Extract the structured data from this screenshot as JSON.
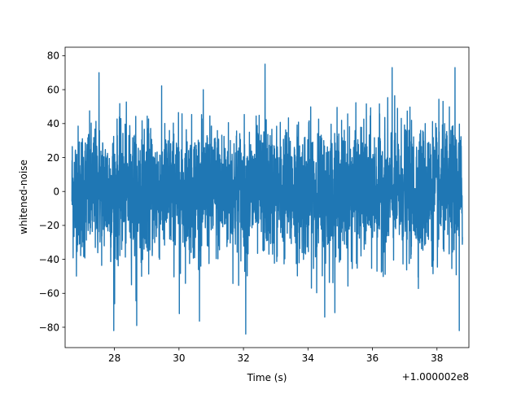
{
  "chart_data": {
    "type": "line",
    "title": "",
    "xlabel": "Time (s)",
    "ylabel": "whitened-noise",
    "x_offset_label": "+1.000002e8",
    "xlim": [
      26.47,
      38.99
    ],
    "ylim": [
      -92,
      85
    ],
    "x_ticks": [
      28,
      30,
      32,
      34,
      36,
      38
    ],
    "x_tick_labels": [
      "28",
      "30",
      "32",
      "34",
      "36",
      "38"
    ],
    "y_ticks": [
      80,
      60,
      40,
      20,
      0,
      -20,
      -40,
      -60,
      -80
    ],
    "y_tick_labels": [
      "80",
      "60",
      "40",
      "20",
      "0",
      "−20",
      "−40",
      "−60",
      "−80"
    ],
    "grid": false,
    "legend": "none",
    "line_color": "#1f77b4",
    "series": [
      {
        "x_range": [
          26.68,
          38.79
        ],
        "min": -84,
        "max": 75,
        "peaks": [
          {
            "x": 32.67,
            "y": 75
          },
          {
            "x": 36.61,
            "y": 73
          },
          {
            "x": 38.56,
            "y": 73
          },
          {
            "x": 27.52,
            "y": 70
          },
          {
            "x": 32.07,
            "y": -84
          },
          {
            "x": 27.98,
            "y": -82
          },
          {
            "x": 38.69,
            "y": -82
          },
          {
            "x": 28.69,
            "y": -79
          },
          {
            "x": 30.01,
            "y": -72
          },
          {
            "x": 34.52,
            "y": -74
          }
        ]
      }
    ]
  }
}
